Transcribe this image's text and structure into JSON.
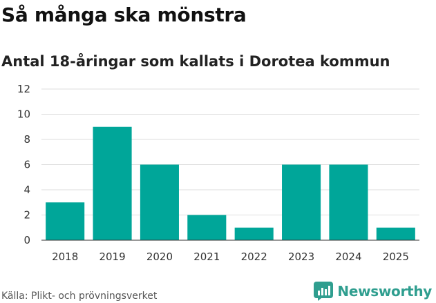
{
  "header": {
    "title": "Så många ska mönstra",
    "subtitle": "Antal 18-åringar som kallats i Dorotea kommun"
  },
  "footer": {
    "source": "Källa: Plikt- och prövningsverket",
    "brand": "Newsworthy"
  },
  "colors": {
    "bar": "#00a699",
    "grid": "#dddddd",
    "axis": "#333333",
    "brand": "#2f9e8f"
  },
  "icons": {
    "brand_logo": "newsworthy-logo-icon"
  },
  "chart_data": {
    "type": "bar",
    "title": "Så många ska mönstra",
    "subtitle": "Antal 18-åringar som kallats i Dorotea kommun",
    "categories": [
      "2018",
      "2019",
      "2020",
      "2021",
      "2022",
      "2023",
      "2024",
      "2025"
    ],
    "values": [
      3,
      9,
      6,
      2,
      1,
      6,
      6,
      1
    ],
    "ylim": [
      0,
      12
    ],
    "yticks": [
      0,
      2,
      4,
      6,
      8,
      10,
      12
    ],
    "grid": true,
    "legend": "none"
  }
}
